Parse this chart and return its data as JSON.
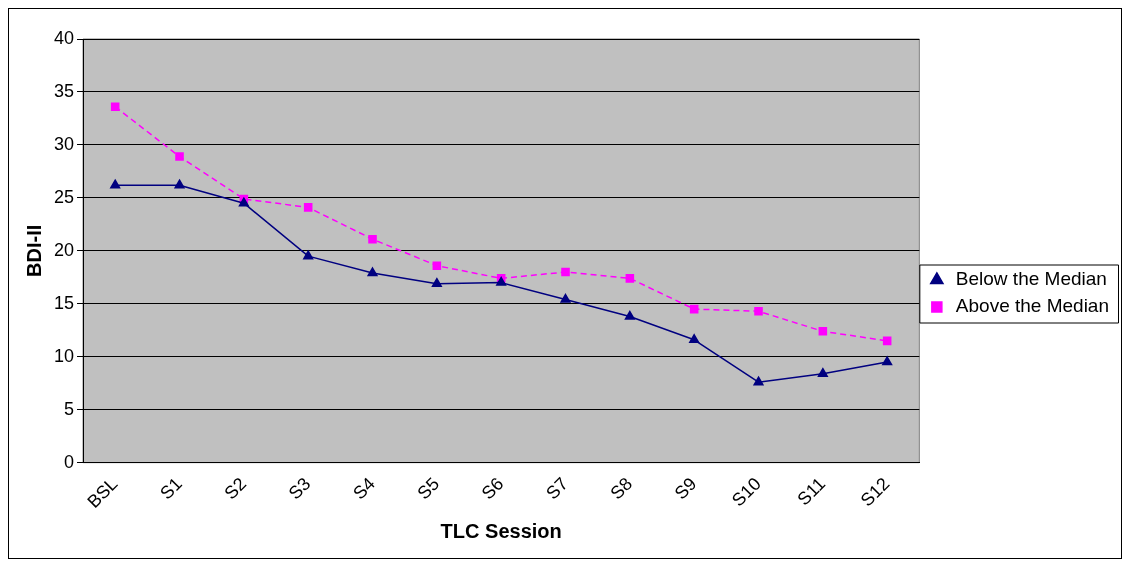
{
  "chart_data": {
    "type": "line",
    "xlabel": "TLC Session",
    "ylabel": "BDI-II",
    "categories": [
      "BSL",
      "S1",
      "S2",
      "S3",
      "S4",
      "S5",
      "S6",
      "S7",
      "S8",
      "S9",
      "S10",
      "S11",
      "S12"
    ],
    "series": [
      {
        "name": "Below the Median",
        "color": "#000080",
        "marker": "triangle",
        "line_style": "solid",
        "values": [
          26.2,
          26.2,
          24.5,
          19.5,
          17.9,
          16.9,
          17.0,
          15.4,
          13.8,
          11.6,
          7.6,
          8.4,
          9.5
        ]
      },
      {
        "name": "Above the Median",
        "color": "#ff00ff",
        "marker": "square",
        "line_style": "dashed",
        "values": [
          33.6,
          28.9,
          24.9,
          24.1,
          21.1,
          18.6,
          17.4,
          18.0,
          17.4,
          14.5,
          14.3,
          12.4,
          11.5
        ]
      }
    ],
    "ylim": [
      0,
      40
    ],
    "yticks": [
      0,
      5,
      10,
      15,
      20,
      25,
      30,
      35,
      40
    ],
    "grid": "y",
    "legend": "right"
  }
}
